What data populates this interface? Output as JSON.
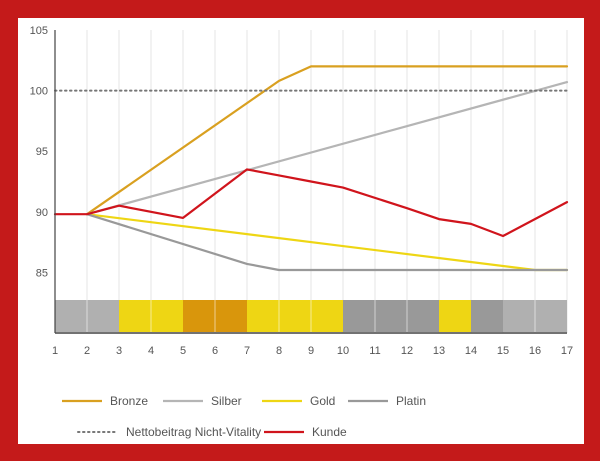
{
  "chart_data": {
    "type": "line",
    "title": "",
    "xlabel": "",
    "ylabel": "",
    "x": [
      1,
      2,
      3,
      4,
      5,
      6,
      7,
      8,
      9,
      10,
      11,
      12,
      13,
      14,
      15,
      16,
      17
    ],
    "xlim": [
      1,
      17
    ],
    "ylim": [
      80,
      105
    ],
    "y_ticks": [
      85,
      90,
      95,
      100,
      105
    ],
    "grid": "vertical",
    "legend_position": "bottom",
    "series": [
      {
        "name": "Bronze",
        "color": "#d9a020",
        "dash": "solid",
        "points": [
          [
            2,
            89.8
          ],
          [
            8,
            100.8
          ],
          [
            9,
            102
          ],
          [
            17,
            102
          ]
        ]
      },
      {
        "name": "Silber",
        "color": "#b5b5b5",
        "dash": "solid",
        "points": [
          [
            2,
            89.8
          ],
          [
            17,
            100.7
          ]
        ]
      },
      {
        "name": "Gold",
        "color": "#eed614",
        "dash": "solid",
        "points": [
          [
            2,
            89.8
          ],
          [
            16,
            85.2
          ],
          [
            17,
            85.2
          ]
        ]
      },
      {
        "name": "Platin",
        "color": "#999999",
        "dash": "solid",
        "points": [
          [
            2,
            89.8
          ],
          [
            7,
            85.7
          ],
          [
            8,
            85.2
          ],
          [
            17,
            85.2
          ]
        ]
      },
      {
        "name": "Nettobeitrag Nicht-Vitality",
        "color": "#777777",
        "dash": "dotted",
        "points": [
          [
            1,
            100
          ],
          [
            17,
            100
          ]
        ]
      },
      {
        "name": "Kunde",
        "color": "#d0141c",
        "dash": "solid",
        "points": [
          [
            1,
            89.8
          ],
          [
            2,
            89.8
          ],
          [
            3,
            90.5
          ],
          [
            5,
            89.5
          ],
          [
            7,
            93.5
          ],
          [
            8,
            93
          ],
          [
            9,
            92.5
          ],
          [
            10,
            92
          ],
          [
            12,
            90.3
          ],
          [
            13,
            89.4
          ],
          [
            14,
            89
          ],
          [
            15,
            88
          ],
          [
            17,
            90.8
          ]
        ]
      }
    ],
    "status_bands": [
      {
        "from": 1,
        "to": 3,
        "status": "Silber",
        "color": "#b0b0b0"
      },
      {
        "from": 3,
        "to": 5,
        "status": "Gold",
        "color": "#eed614"
      },
      {
        "from": 5,
        "to": 7,
        "status": "Bronze",
        "color": "#d9960c"
      },
      {
        "from": 7,
        "to": 10,
        "status": "Gold",
        "color": "#eed614"
      },
      {
        "from": 10,
        "to": 13,
        "status": "Platin",
        "color": "#999999"
      },
      {
        "from": 13,
        "to": 14,
        "status": "Gold",
        "color": "#eed614"
      },
      {
        "from": 14,
        "to": 15,
        "status": "Platin",
        "color": "#999999"
      },
      {
        "from": 15,
        "to": 17,
        "status": "Silber",
        "color": "#b0b0b0"
      }
    ]
  },
  "legend": {
    "rows": [
      [
        {
          "label": "Bronze",
          "color": "#d9a020",
          "dash": "solid"
        },
        {
          "label": "Silber",
          "color": "#b5b5b5",
          "dash": "solid"
        },
        {
          "label": "Gold",
          "color": "#eed614",
          "dash": "solid"
        },
        {
          "label": "Platin",
          "color": "#999999",
          "dash": "solid"
        }
      ],
      [
        {
          "label": "Nettobeitrag Nicht-Vitality",
          "color": "#777777",
          "dash": "dotted"
        },
        {
          "label": "Kunde",
          "color": "#d0141c",
          "dash": "solid"
        }
      ]
    ]
  },
  "colors": {
    "frame": "#c41a1a",
    "axis": "#444444",
    "grid": "#e4e4e4",
    "text": "#555555"
  }
}
